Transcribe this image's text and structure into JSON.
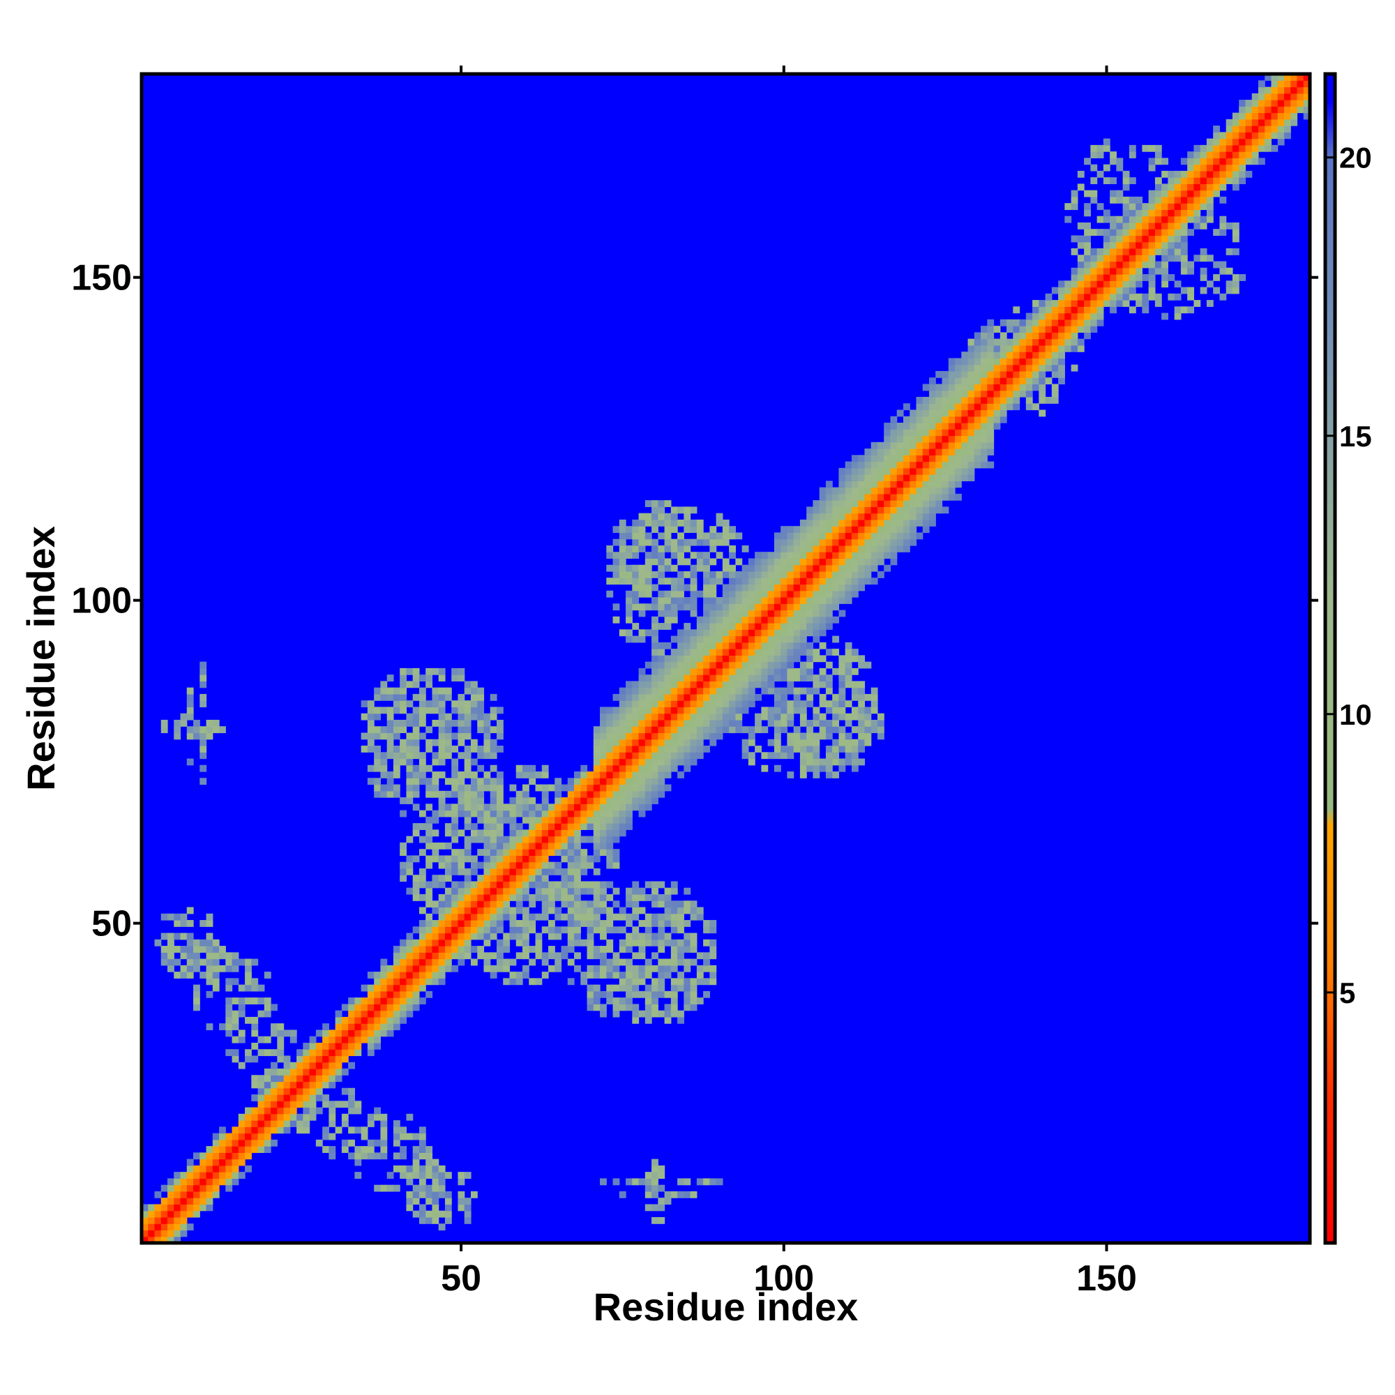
{
  "chart_data": {
    "type": "heatmap",
    "title": "",
    "xlabel": "Residue index",
    "ylabel": "Residue index",
    "n_residues": 181,
    "xlim": [
      1,
      181
    ],
    "ylim": [
      1,
      181
    ],
    "x_ticks": [
      50,
      100,
      150
    ],
    "y_ticks": [
      50,
      100,
      150
    ],
    "x_tick_labels": [
      "50",
      "100",
      "150"
    ],
    "y_tick_labels": [
      "50",
      "100",
      "150"
    ],
    "grid": false,
    "legend": "colorbar-right",
    "colorbar": {
      "range": [
        0.5,
        21.5
      ],
      "ticks": [
        5,
        10,
        15,
        20
      ],
      "tick_labels": [
        "5",
        "10",
        "15",
        "20"
      ],
      "stops": [
        {
          "value": 0.5,
          "color": "#ff0000"
        },
        {
          "value": 3.0,
          "color": "#ff2a00"
        },
        {
          "value": 5.5,
          "color": "#ff7f00"
        },
        {
          "value": 8.0,
          "color": "#ffa500"
        },
        {
          "value": 8.3,
          "color": "#97ba7f"
        },
        {
          "value": 12.0,
          "color": "#9fb98b"
        },
        {
          "value": 16.0,
          "color": "#7c99b0"
        },
        {
          "value": 20.0,
          "color": "#5a74c8"
        },
        {
          "value": 21.0,
          "color": "#0000ff"
        }
      ],
      "background_color": "#0000ff"
    },
    "diagonal_band": {
      "segments": [
        {
          "from": 1,
          "to": 35,
          "halfwidth": 5
        },
        {
          "from": 35,
          "to": 60,
          "halfwidth": 6
        },
        {
          "from": 60,
          "to": 70,
          "halfwidth": 5
        },
        {
          "from": 70,
          "to": 132,
          "halfwidth": 11
        },
        {
          "from": 132,
          "to": 181,
          "halfwidth": 6
        }
      ]
    },
    "contact_regions": [
      {
        "x": [
          3,
          20
        ],
        "y": [
          41,
          49
        ],
        "orientation": "anti-diagonal",
        "density": 0.55
      },
      {
        "x": [
          20,
          52
        ],
        "y": [
          4,
          28
        ],
        "orientation": "anti-diagonal",
        "density": 0.45
      },
      {
        "x": [
          6,
          14
        ],
        "y": [
          72,
          90
        ],
        "orientation": "cross",
        "density": 0.4
      },
      {
        "x": [
          34,
          57
        ],
        "y": [
          71,
          90
        ],
        "orientation": "blob",
        "density": 0.45
      },
      {
        "x": [
          40,
          75
        ],
        "y": [
          47,
          72
        ],
        "orientation": "blob",
        "density": 0.5
      },
      {
        "x": [
          66,
          90
        ],
        "y": [
          34,
          56
        ],
        "orientation": "blob",
        "density": 0.45
      },
      {
        "x": [
          72,
          88
        ],
        "y": [
          4,
          12
        ],
        "orientation": "cross",
        "density": 0.4
      },
      {
        "x": [
          72,
          95
        ],
        "y": [
          98,
          115
        ],
        "orientation": "blob",
        "density": 0.45
      },
      {
        "x": [
          91,
          116
        ],
        "y": [
          72,
          90
        ],
        "orientation": "blob",
        "density": 0.45
      },
      {
        "x": [
          128,
          147
        ],
        "y": [
          133,
          144
        ],
        "orientation": "blob",
        "density": 0.45
      },
      {
        "x": [
          143,
          163
        ],
        "y": [
          145,
          172
        ],
        "orientation": "blob",
        "density": 0.4
      }
    ]
  }
}
